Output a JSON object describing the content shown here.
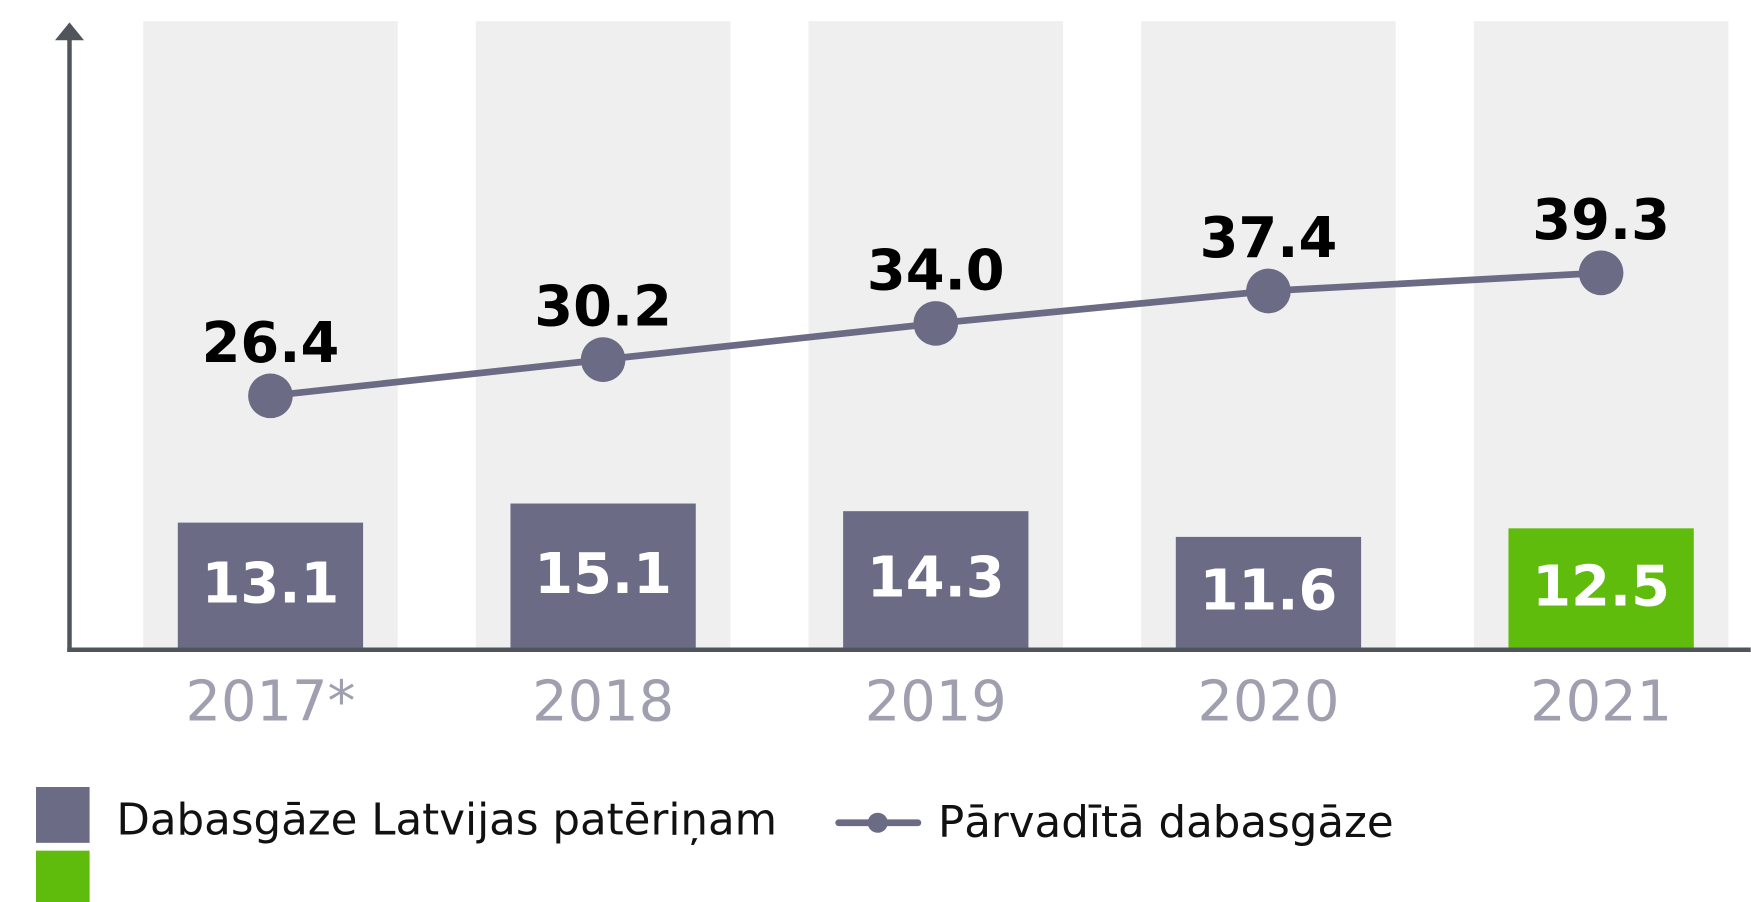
{
  "chart_data": {
    "type": "bar",
    "categories": [
      "2017*",
      "2018",
      "2019",
      "2020",
      "2021"
    ],
    "ylim": [
      0,
      65
    ],
    "series": [
      {
        "name": "Dabasgāze Latvijas patēriņam",
        "type": "bar",
        "color": "#6b6b85",
        "colors": [
          "#6b6b85",
          "#6b6b85",
          "#6b6b85",
          "#6b6b85",
          "#5fbb0c"
        ],
        "values": [
          13.1,
          15.1,
          14.3,
          11.6,
          12.5
        ],
        "value_labels": [
          "13.1",
          "15.1",
          "14.3",
          "11.6",
          "12.5"
        ]
      },
      {
        "name": "Pārvadītā dabasgāze",
        "type": "line",
        "color": "#6b6b85",
        "values": [
          26.4,
          30.2,
          34.0,
          37.4,
          39.3
        ],
        "value_labels": [
          "26.4",
          "30.2",
          "34.0",
          "37.4",
          "39.3"
        ]
      }
    ]
  }
}
